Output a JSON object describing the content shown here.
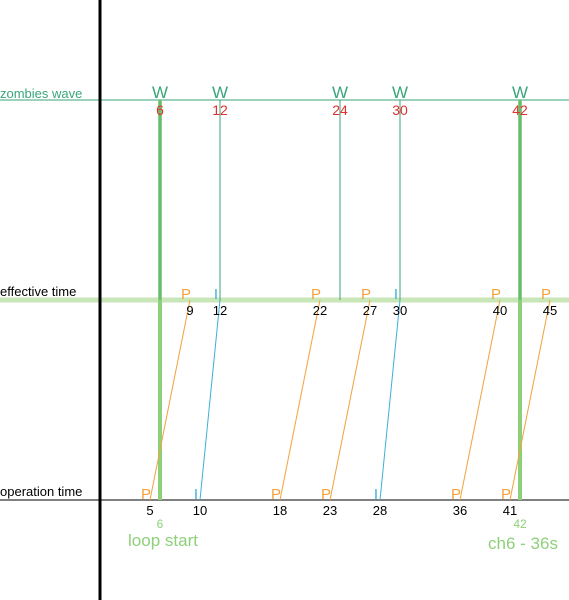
{
  "labels": {
    "waves": "zombies wave",
    "effective": "effective time",
    "operation": "operation time"
  },
  "wave_marker": "W",
  "loop_start": {
    "value": "6",
    "label": "loop start"
  },
  "loop_end": {
    "value": "42",
    "label": "ch6 - 36s"
  },
  "waves": [
    {
      "time": "6"
    },
    {
      "time": "12"
    },
    {
      "time": "24"
    },
    {
      "time": "30"
    },
    {
      "time": "42"
    },
    {
      "time": ""
    }
  ],
  "operations": [
    {
      "type": "P",
      "op_time": "5",
      "eff_time": "9"
    },
    {
      "type": "I",
      "op_time": "10",
      "eff_time": "12"
    },
    {
      "type": "P",
      "op_time": "18",
      "eff_time": "22"
    },
    {
      "type": "P",
      "op_time": "23",
      "eff_time": "27"
    },
    {
      "type": "I",
      "op_time": "28",
      "eff_time": "30"
    },
    {
      "type": "P",
      "op_time": "36",
      "eff_time": "40"
    },
    {
      "type": "P",
      "op_time": "41",
      "eff_time": "45"
    }
  ],
  "colors": {
    "wave": "#3aa57a",
    "wave_time": "#e03030",
    "plant": "#f2a23c",
    "ice": "#3ab0d8",
    "loop": "#8ed07a",
    "highlight": "#c8e6b8",
    "axis": "#000000"
  }
}
